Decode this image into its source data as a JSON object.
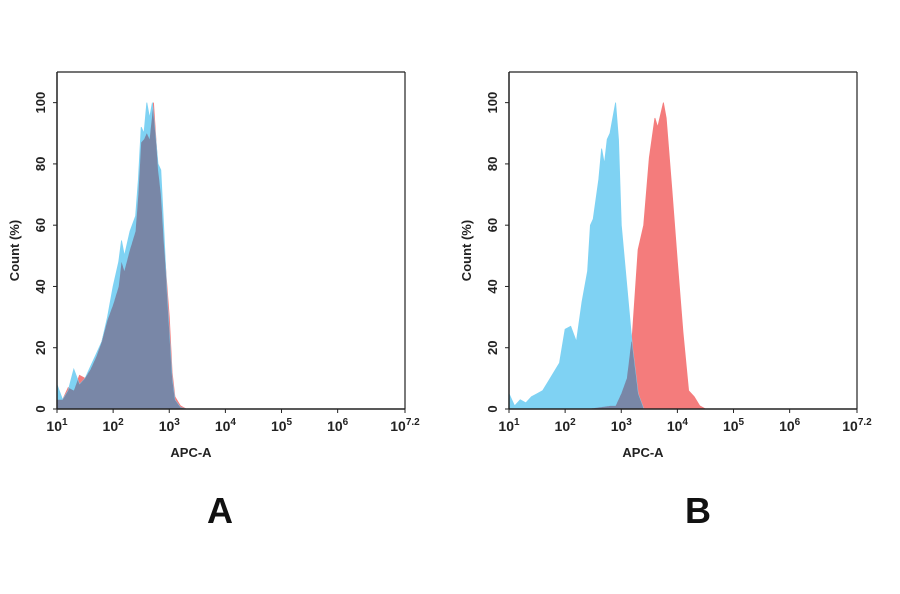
{
  "chart_data": [
    {
      "type": "area",
      "panel_label": "A",
      "xlabel": "APC-A",
      "ylabel": "Count (%)",
      "x_scale": "log10",
      "xlim_log10": [
        1,
        7.2
      ],
      "ylim": [
        0,
        110
      ],
      "x_ticks": [
        {
          "base": "10",
          "exp": "1",
          "v": 1
        },
        {
          "base": "10",
          "exp": "2",
          "v": 2
        },
        {
          "base": "10",
          "exp": "3",
          "v": 3
        },
        {
          "base": "10",
          "exp": "4",
          "v": 4
        },
        {
          "base": "10",
          "exp": "5",
          "v": 5
        },
        {
          "base": "10",
          "exp": "6",
          "v": 6
        },
        {
          "base": "10",
          "exp": "7.2",
          "v": 7.2
        }
      ],
      "y_ticks": [
        "0",
        "20",
        "40",
        "60",
        "80",
        "100"
      ],
      "grid": false,
      "series": [
        {
          "color": "#f47c7c",
          "points_log10x_y": [
            [
              1,
              3
            ],
            [
              1.1,
              3
            ],
            [
              1.2,
              7
            ],
            [
              1.3,
              6
            ],
            [
              1.4,
              11
            ],
            [
              1.5,
              10
            ],
            [
              1.6,
              13
            ],
            [
              1.7,
              17
            ],
            [
              1.8,
              22
            ],
            [
              1.9,
              29
            ],
            [
              2.0,
              34
            ],
            [
              2.1,
              40
            ],
            [
              2.15,
              48
            ],
            [
              2.2,
              45
            ],
            [
              2.3,
              52
            ],
            [
              2.4,
              58
            ],
            [
              2.45,
              70
            ],
            [
              2.5,
              87
            ],
            [
              2.55,
              88
            ],
            [
              2.6,
              90
            ],
            [
              2.65,
              88
            ],
            [
              2.72,
              100
            ],
            [
              2.8,
              78
            ],
            [
              2.85,
              70
            ],
            [
              2.9,
              55
            ],
            [
              2.95,
              42
            ],
            [
              3.0,
              30
            ],
            [
              3.05,
              12
            ],
            [
              3.1,
              4
            ],
            [
              3.2,
              1
            ],
            [
              3.3,
              0
            ]
          ]
        },
        {
          "color": "#7fd2f3",
          "points_log10x_y": [
            [
              1,
              8
            ],
            [
              1.1,
              3
            ],
            [
              1.2,
              6
            ],
            [
              1.3,
              13
            ],
            [
              1.4,
              8
            ],
            [
              1.5,
              10
            ],
            [
              1.6,
              14
            ],
            [
              1.7,
              18
            ],
            [
              1.8,
              22
            ],
            [
              1.9,
              30
            ],
            [
              2.0,
              40
            ],
            [
              2.1,
              48
            ],
            [
              2.15,
              55
            ],
            [
              2.2,
              50
            ],
            [
              2.3,
              58
            ],
            [
              2.4,
              63
            ],
            [
              2.45,
              75
            ],
            [
              2.5,
              92
            ],
            [
              2.55,
              90
            ],
            [
              2.6,
              100
            ],
            [
              2.65,
              95
            ],
            [
              2.7,
              100
            ],
            [
              2.75,
              90
            ],
            [
              2.8,
              80
            ],
            [
              2.85,
              78
            ],
            [
              2.9,
              60
            ],
            [
              2.95,
              40
            ],
            [
              3.0,
              25
            ],
            [
              3.05,
              10
            ],
            [
              3.1,
              3
            ],
            [
              3.2,
              0.5
            ],
            [
              3.3,
              0
            ]
          ]
        }
      ],
      "overlap_color": "#7987a7"
    },
    {
      "type": "area",
      "panel_label": "B",
      "xlabel": "APC-A",
      "ylabel": "Count (%)",
      "x_scale": "log10",
      "xlim_log10": [
        1,
        7.2
      ],
      "ylim": [
        0,
        110
      ],
      "x_ticks": [
        {
          "base": "10",
          "exp": "1",
          "v": 1
        },
        {
          "base": "10",
          "exp": "2",
          "v": 2
        },
        {
          "base": "10",
          "exp": "3",
          "v": 3
        },
        {
          "base": "10",
          "exp": "4",
          "v": 4
        },
        {
          "base": "10",
          "exp": "5",
          "v": 5
        },
        {
          "base": "10",
          "exp": "6",
          "v": 6
        },
        {
          "base": "10",
          "exp": "7.2",
          "v": 7.2
        }
      ],
      "y_ticks": [
        "0",
        "20",
        "40",
        "60",
        "80",
        "100"
      ],
      "grid": false,
      "series": [
        {
          "color": "#f47c7c",
          "points_log10x_y": [
            [
              2.4,
              0
            ],
            [
              2.6,
              0.5
            ],
            [
              2.8,
              1
            ],
            [
              2.9,
              1
            ],
            [
              3.0,
              5
            ],
            [
              3.1,
              10
            ],
            [
              3.2,
              25
            ],
            [
              3.3,
              52
            ],
            [
              3.4,
              60
            ],
            [
              3.5,
              82
            ],
            [
              3.6,
              95
            ],
            [
              3.65,
              92
            ],
            [
              3.75,
              100
            ],
            [
              3.8,
              95
            ],
            [
              3.9,
              72
            ],
            [
              4.0,
              48
            ],
            [
              4.1,
              25
            ],
            [
              4.2,
              6
            ],
            [
              4.3,
              4
            ],
            [
              4.4,
              1
            ],
            [
              4.5,
              0
            ]
          ]
        },
        {
          "color": "#7fd2f3",
          "points_log10x_y": [
            [
              1,
              5
            ],
            [
              1.1,
              1
            ],
            [
              1.2,
              3
            ],
            [
              1.3,
              2
            ],
            [
              1.4,
              4
            ],
            [
              1.5,
              5
            ],
            [
              1.6,
              6
            ],
            [
              1.7,
              9
            ],
            [
              1.8,
              12
            ],
            [
              1.9,
              15
            ],
            [
              2.0,
              26
            ],
            [
              2.1,
              27
            ],
            [
              2.2,
              22
            ],
            [
              2.3,
              35
            ],
            [
              2.4,
              45
            ],
            [
              2.45,
              60
            ],
            [
              2.5,
              62
            ],
            [
              2.6,
              75
            ],
            [
              2.65,
              85
            ],
            [
              2.7,
              80
            ],
            [
              2.75,
              88
            ],
            [
              2.8,
              90
            ],
            [
              2.9,
              100
            ],
            [
              2.95,
              88
            ],
            [
              3.0,
              60
            ],
            [
              3.1,
              40
            ],
            [
              3.2,
              20
            ],
            [
              3.3,
              5
            ],
            [
              3.4,
              0
            ]
          ]
        }
      ],
      "overlap_color": "#7987a7"
    }
  ]
}
